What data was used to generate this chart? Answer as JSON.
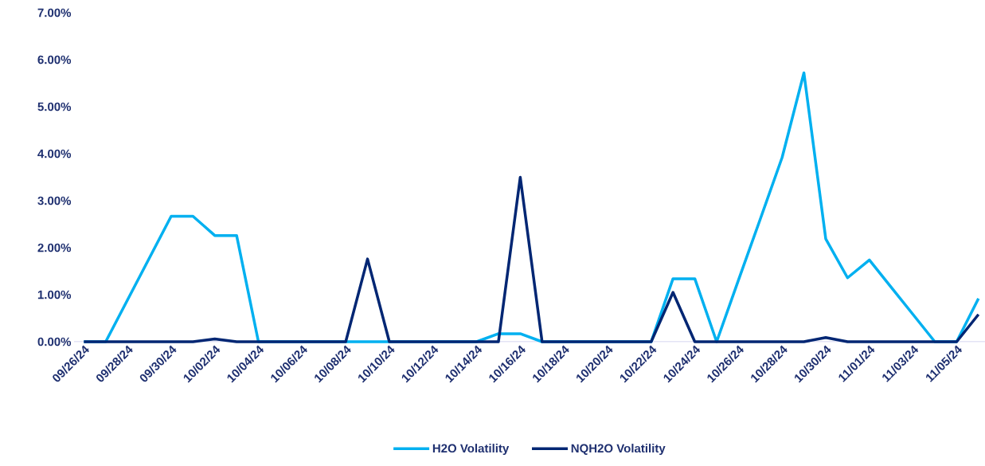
{
  "chart_data": {
    "type": "line",
    "categories": [
      "09/26/24",
      null,
      "09/28/24",
      null,
      "09/30/24",
      null,
      "10/02/24",
      null,
      "10/04/24",
      null,
      "10/06/24",
      null,
      "10/08/24",
      null,
      "10/10/24",
      null,
      "10/12/24",
      null,
      "10/14/24",
      null,
      "10/16/24",
      null,
      "10/18/24",
      null,
      "10/20/24",
      null,
      "10/22/24",
      null,
      "10/24/24",
      null,
      "10/26/24",
      null,
      "10/28/24",
      null,
      "10/30/24",
      null,
      "11/01/24",
      null,
      "11/03/24",
      null,
      "11/05/24",
      null
    ],
    "series": [
      {
        "name": "H2O Volatility",
        "color": "#00b0f0",
        "values": [
          0,
          0,
          0.89,
          1.78,
          2.67,
          2.67,
          2.26,
          2.26,
          0,
          0,
          0,
          0,
          0,
          0,
          0,
          0,
          0,
          0,
          0,
          0.17,
          0.17,
          0,
          0,
          0,
          0,
          0,
          0,
          1.34,
          1.34,
          0,
          1.31,
          2.61,
          3.92,
          5.72,
          2.19,
          1.36,
          1.74,
          1.16,
          0.58,
          0,
          0,
          0.92
        ]
      },
      {
        "name": "NQH2O Volatility",
        "color": "#002673",
        "values": [
          0,
          0,
          0,
          0,
          0,
          0,
          0.06,
          0,
          0,
          0,
          0,
          0,
          0,
          1.76,
          0,
          0,
          0,
          0,
          0,
          0,
          3.5,
          0,
          0,
          0,
          0,
          0,
          0,
          1.05,
          0,
          0,
          0,
          0,
          0,
          0,
          0.09,
          0,
          0,
          0,
          0,
          0,
          0,
          0.58
        ]
      }
    ],
    "ylim": [
      0,
      7
    ],
    "yticks": [
      {
        "value": 0,
        "label": "0.00%"
      },
      {
        "value": 1,
        "label": "1.00%"
      },
      {
        "value": 2,
        "label": "2.00%"
      },
      {
        "value": 3,
        "label": "3.00%"
      },
      {
        "value": 4,
        "label": "4.00%"
      },
      {
        "value": 5,
        "label": "5.00%"
      },
      {
        "value": 6,
        "label": "6.00%"
      },
      {
        "value": 7,
        "label": "7.00%"
      }
    ],
    "legend": "bottom"
  }
}
